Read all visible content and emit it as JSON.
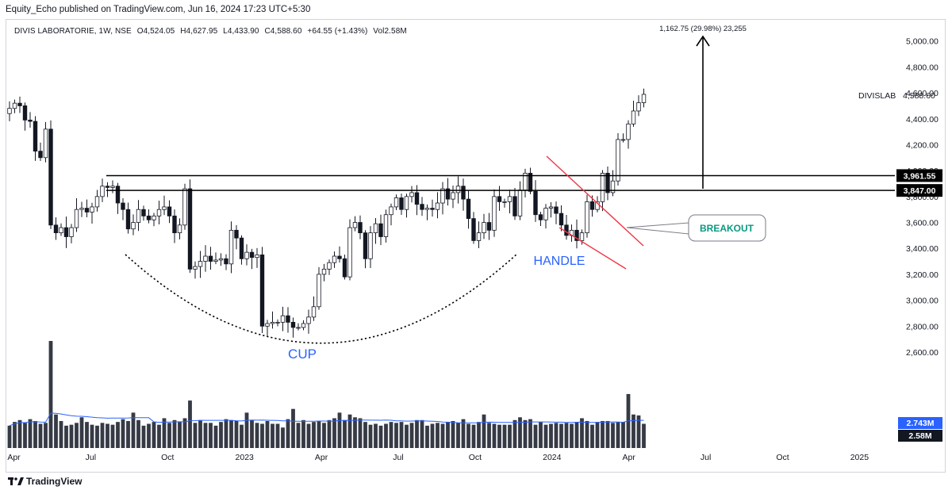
{
  "header": {
    "published_by": "Equity_Echo published on TradingView.com, Jun 16, 2024 17:23 UTC+5:30"
  },
  "legend": {
    "symbol": "DIVIS LABORATORIE, 1W, NSE",
    "open": "O4,524.05",
    "high": "H4,627.95",
    "low": "L4,433.90",
    "close": "C4,588.60",
    "change": "+64.55 (+1.43%)",
    "volume": "Vol2.58M"
  },
  "footer": {
    "brand": "TradingView"
  },
  "colors": {
    "candle_body": "#ffffff",
    "candle_edge": "#131722",
    "volume_bar": "#363a45",
    "volume_ma": "#2962ff",
    "level_line": "#000000",
    "handle_channel": "#f23645",
    "cup_label": "#2962ff",
    "breakout_text": "#089981",
    "volume_ma_tag": "#2962ff",
    "volume_tag": "#131722"
  },
  "chart_data": {
    "type": "candlestick",
    "symbol": "DIVISLAB",
    "timeframe": "1W",
    "ylim": [
      2600,
      5100
    ],
    "y_ticks": [
      2600,
      2800,
      3000,
      3200,
      3400,
      3600,
      3800,
      4000,
      4200,
      4400,
      4600,
      4800,
      5000
    ],
    "y_tick_labels": [
      "2,600.00",
      "2,800.00",
      "3,000.00",
      "3,200.00",
      "3,400.00",
      "3,600.00",
      "3,800.00",
      "4,000.00",
      "4,200.00",
      "4,400.00",
      "4,600.00",
      "4,800.00",
      "5,000.00"
    ],
    "x_ticks": [
      {
        "label": "Apr",
        "date": "2022-04"
      },
      {
        "label": "Jul",
        "date": "2022-07"
      },
      {
        "label": "Oct",
        "date": "2022-10"
      },
      {
        "label": "2023",
        "date": "2023-01"
      },
      {
        "label": "Apr",
        "date": "2023-04"
      },
      {
        "label": "Jul",
        "date": "2023-07"
      },
      {
        "label": "Oct",
        "date": "2023-10"
      },
      {
        "label": "2024",
        "date": "2024-01"
      },
      {
        "label": "Apr",
        "date": "2024-04"
      },
      {
        "label": "Jul",
        "date": "2024-07"
      },
      {
        "label": "Oct",
        "date": "2024-10"
      },
      {
        "label": "2025",
        "date": "2025-01"
      }
    ],
    "x_tick_labels": [
      "Apr",
      "Jul",
      "Oct",
      "2023",
      "Apr",
      "Jul",
      "Oct",
      "2024",
      "Apr",
      "Jul",
      "Oct",
      "2025"
    ],
    "closes": [
      4480,
      4520,
      4500,
      4390,
      4380,
      4150,
      4100,
      4320,
      3580,
      3520,
      3560,
      3490,
      3560,
      3700,
      3710,
      3680,
      3720,
      3800,
      3880,
      3870,
      3880,
      3750,
      3700,
      3550,
      3600,
      3700,
      3650,
      3620,
      3650,
      3700,
      3720,
      3650,
      3520,
      3580,
      3860,
      3240,
      3260,
      3300,
      3340,
      3300,
      3310,
      3320,
      3280,
      3540,
      3480,
      3320,
      3370,
      3330,
      3350,
      2800,
      2820,
      2830,
      2830,
      2880,
      2830,
      2790,
      2790,
      2820,
      2870,
      2950,
      3200,
      3240,
      3290,
      3340,
      3320,
      3180,
      3560,
      3600,
      3520,
      3320,
      3520,
      3590,
      3490,
      3660,
      3720,
      3790,
      3700,
      3800,
      3830,
      3740,
      3700,
      3710,
      3700,
      3750,
      3860,
      3780,
      3830,
      3880,
      3780,
      3630,
      3460,
      3520,
      3600,
      3540,
      3800,
      3760,
      3760,
      3800,
      3650,
      3850,
      3980,
      3840,
      3660,
      3620,
      3710,
      3720,
      3670,
      3580,
      3500,
      3540,
      3460,
      3520,
      3760,
      3700,
      3760,
      3980,
      3830,
      3920,
      4240,
      4240,
      4360,
      4460,
      4524,
      4588.6
    ],
    "level_lines": [
      3961.55,
      3847.0
    ],
    "level_labels": [
      "3,961.55",
      "3,847.00"
    ],
    "last_price": 4588.6,
    "last_price_label": "4,588.60",
    "symbol_label": "DIVISLAB",
    "target_label": "1,162.75 (29.98%) 23,255",
    "annotations": {
      "cup": "CUP",
      "handle": "HANDLE",
      "breakout": "BREAKOUT"
    },
    "volume": {
      "ma_label": "2.743M",
      "last_label": "2.58M",
      "ma_value_m": 2.743,
      "last_value_m": 2.58,
      "values_m": [
        2.4,
        2.8,
        3.0,
        2.7,
        3.1,
        2.9,
        2.6,
        2.7,
        11.5,
        3.6,
        2.9,
        2.4,
        2.5,
        2.7,
        3.3,
        2.8,
        2.5,
        2.4,
        2.7,
        2.6,
        2.5,
        2.8,
        3.1,
        2.9,
        3.8,
        3.0,
        2.4,
        2.6,
        2.8,
        2.5,
        3.2,
        2.7,
        3.0,
        2.8,
        3.2,
        5.1,
        2.7,
        3.0,
        2.7,
        2.7,
        2.4,
        2.8,
        3.1,
        3.0,
        2.9,
        2.5,
        3.8,
        3.0,
        2.7,
        2.6,
        2.9,
        2.6,
        2.6,
        2.2,
        3.1,
        4.2,
        2.7,
        3.0,
        2.6,
        2.8,
        2.9,
        2.7,
        3.0,
        3.2,
        3.8,
        3.0,
        3.6,
        3.3,
        3.2,
        2.8,
        2.5,
        2.6,
        2.4,
        2.6,
        2.8,
        2.7,
        2.8,
        2.5,
        2.7,
        3.0,
        3.0,
        2.4,
        2.6,
        2.7,
        2.6,
        2.8,
        2.9,
        2.7,
        3.1,
        2.6,
        2.5,
        2.8,
        3.6,
        2.7,
        2.6,
        2.5,
        2.5,
        2.5,
        3.0,
        3.3,
        3.0,
        3.1,
        2.5,
        2.8,
        2.5,
        2.6,
        2.7,
        2.6,
        2.7,
        2.6,
        2.8,
        3.2,
        2.9,
        2.5,
        2.8,
        2.9,
        2.9,
        2.7,
        2.8,
        2.8,
        5.8,
        3.6,
        3.5,
        2.6
      ]
    }
  }
}
